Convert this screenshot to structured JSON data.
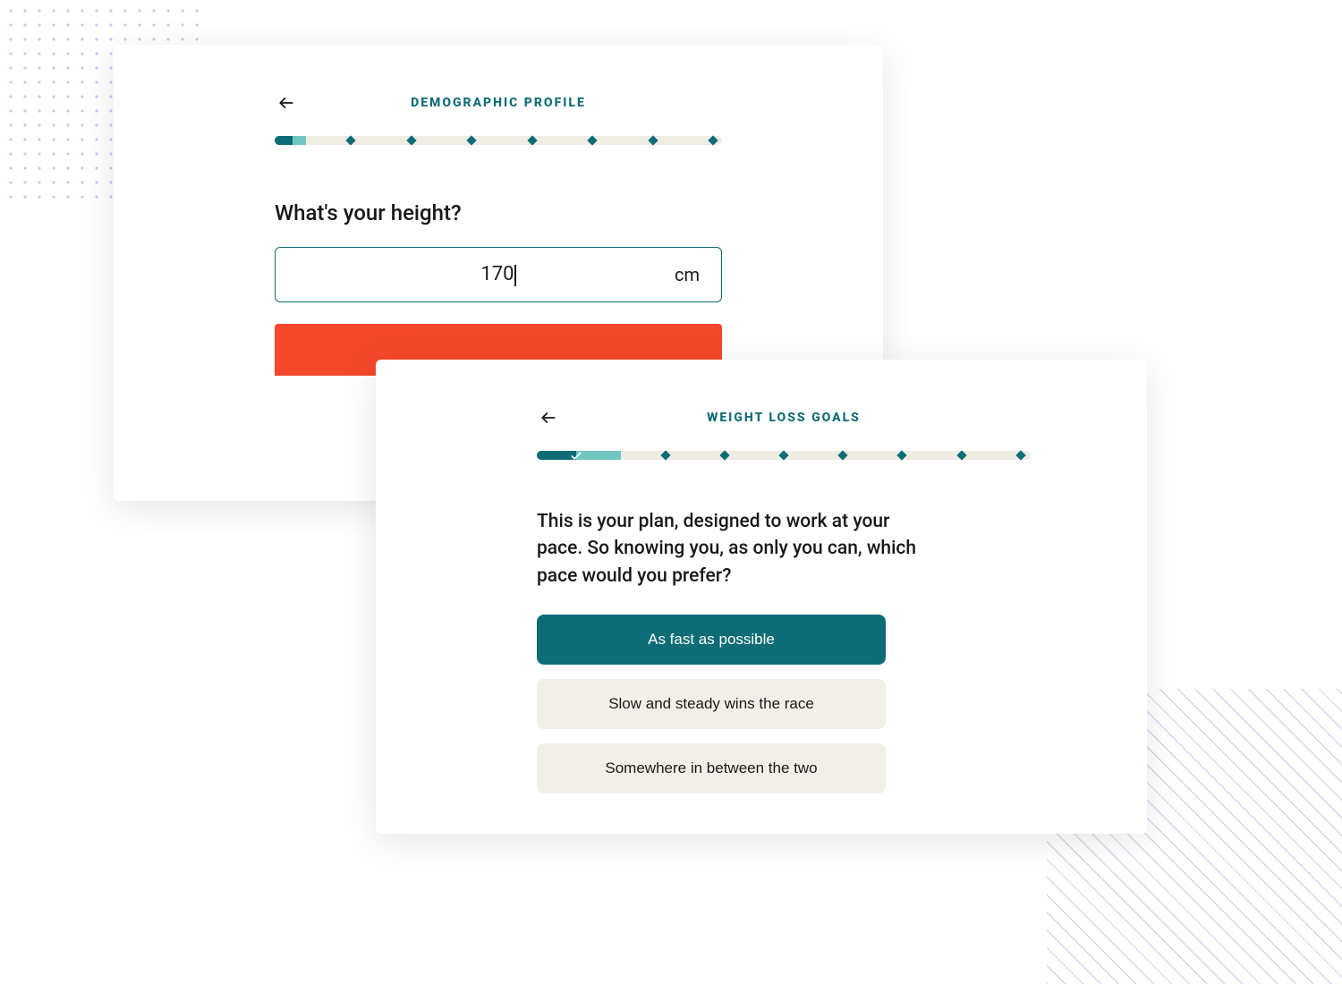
{
  "colors": {
    "teal": "#0d6c76",
    "teal_light": "#6ec8bf",
    "track": "#efece4",
    "accent": "#f5482a",
    "option_bg": "#f2efe8",
    "text": "#191919",
    "white": "#ffffff"
  },
  "card_a": {
    "title": "DEMOGRAPHIC PROFILE",
    "question": "What's your height?",
    "value": "170",
    "unit": "cm",
    "progress": {
      "steps": 8,
      "fill_dark_pct": 4,
      "fill_light_pct": 7,
      "rail_color": "#efece4",
      "fill_dark_color": "#0d6c76",
      "fill_light_color": "#6ec8bf",
      "dot_color": "#0d6c76",
      "dot_positions_pct": [
        17,
        30.5,
        44,
        57.5,
        71,
        84.5,
        98
      ]
    },
    "input_border": "#0d6c76",
    "next_bg": "#f5482a"
  },
  "card_b": {
    "title": "WEIGHT LOSS GOALS",
    "prompt": "This is your plan, designed to work at your pace. So knowing you, as only you can, which pace would you prefer?",
    "options": [
      {
        "label": "As fast as possible",
        "selected": true
      },
      {
        "label": "Slow and steady wins the race",
        "selected": false
      },
      {
        "label": "Somewhere in between the two",
        "selected": false
      }
    ],
    "progress": {
      "steps": 8,
      "fill_dark_pct": 8,
      "fill_light_pct": 17,
      "check_at_pct": 8,
      "rail_color": "#efece4",
      "fill_dark_color": "#0d6c76",
      "fill_light_color": "#6ec8bf",
      "dot_color": "#0d6c76",
      "dot_positions_pct": [
        26,
        38,
        50,
        62,
        74,
        86,
        98
      ]
    },
    "selected_bg": "#0d6c76",
    "selected_fg": "#ffffff",
    "unselected_bg": "#f2efe8",
    "unselected_fg": "#191919"
  }
}
